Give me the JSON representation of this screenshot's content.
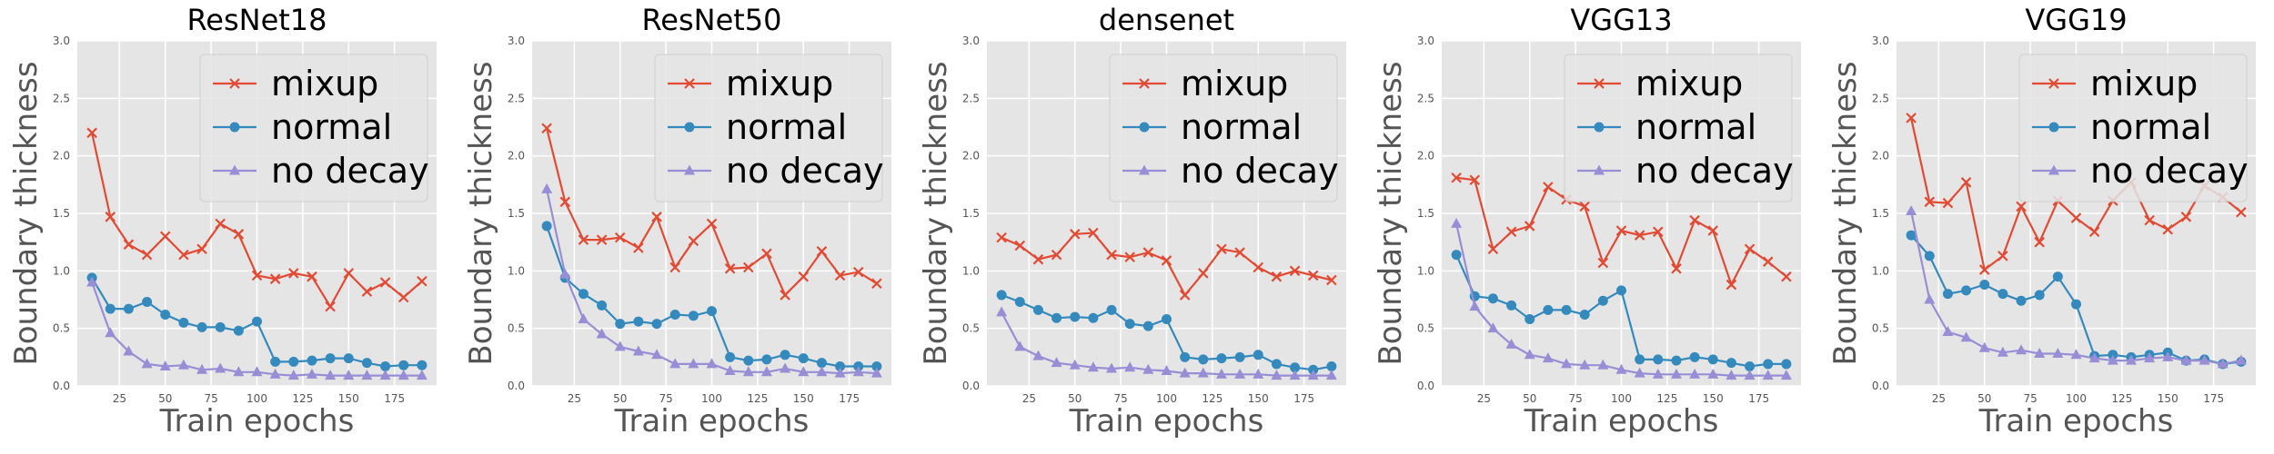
{
  "colors": {
    "mixup": "#e24a33",
    "normal": "#348abd",
    "no_decay": "#988ed5"
  },
  "chart_data": [
    {
      "type": "line",
      "title": "ResNet18",
      "xlabel": "Train epochs",
      "ylabel": "Boundary thickness",
      "xlim": [
        2,
        198
      ],
      "ylim": [
        0,
        3.0
      ],
      "xticks": [
        "25",
        "50",
        "75",
        "100",
        "125",
        "150",
        "175"
      ],
      "yticks": [
        "0.0",
        "0.5",
        "1.0",
        "1.5",
        "2.0",
        "2.5",
        "3.0"
      ],
      "legend": "upper-right",
      "x": [
        10,
        20,
        30,
        40,
        50,
        60,
        70,
        80,
        90,
        100,
        110,
        120,
        130,
        140,
        150,
        160,
        170,
        180,
        190
      ],
      "series": [
        {
          "name": "mixup",
          "marker": "x",
          "values": [
            2.2,
            1.47,
            1.23,
            1.14,
            1.3,
            1.14,
            1.19,
            1.41,
            1.32,
            0.96,
            0.93,
            0.98,
            0.95,
            0.69,
            0.98,
            0.82,
            0.9,
            0.77,
            0.91
          ]
        },
        {
          "name": "normal",
          "marker": "circle",
          "values": [
            0.94,
            0.67,
            0.67,
            0.73,
            0.62,
            0.55,
            0.51,
            0.51,
            0.48,
            0.56,
            0.21,
            0.21,
            0.22,
            0.24,
            0.24,
            0.2,
            0.17,
            0.18,
            0.18
          ]
        },
        {
          "name": "no decay",
          "marker": "triangle",
          "values": [
            0.9,
            0.46,
            0.3,
            0.19,
            0.17,
            0.18,
            0.14,
            0.15,
            0.12,
            0.12,
            0.1,
            0.09,
            0.1,
            0.09,
            0.09,
            0.09,
            0.09,
            0.09,
            0.09
          ]
        }
      ]
    },
    {
      "type": "line",
      "title": "ResNet50",
      "xlabel": "Train epochs",
      "ylabel": "Boundary thickness",
      "xlim": [
        2,
        198
      ],
      "ylim": [
        0,
        3.0
      ],
      "xticks": [
        "25",
        "50",
        "75",
        "100",
        "125",
        "150",
        "175"
      ],
      "yticks": [
        "0.0",
        "0.5",
        "1.0",
        "1.5",
        "2.0",
        "2.5",
        "3.0"
      ],
      "legend": "upper-right",
      "x": [
        10,
        20,
        30,
        40,
        50,
        60,
        70,
        80,
        90,
        100,
        110,
        120,
        130,
        140,
        150,
        160,
        170,
        180,
        190
      ],
      "series": [
        {
          "name": "mixup",
          "marker": "x",
          "values": [
            2.24,
            1.6,
            1.27,
            1.27,
            1.29,
            1.2,
            1.47,
            1.03,
            1.26,
            1.41,
            1.02,
            1.03,
            1.15,
            0.79,
            0.95,
            1.17,
            0.96,
            0.99,
            0.89
          ]
        },
        {
          "name": "normal",
          "marker": "circle",
          "values": [
            1.39,
            0.94,
            0.8,
            0.7,
            0.54,
            0.56,
            0.54,
            0.62,
            0.61,
            0.65,
            0.25,
            0.22,
            0.23,
            0.27,
            0.24,
            0.2,
            0.17,
            0.17,
            0.17
          ]
        },
        {
          "name": "no decay",
          "marker": "triangle",
          "values": [
            1.71,
            0.97,
            0.58,
            0.45,
            0.34,
            0.3,
            0.27,
            0.19,
            0.19,
            0.19,
            0.13,
            0.12,
            0.12,
            0.15,
            0.12,
            0.12,
            0.11,
            0.12,
            0.11
          ]
        }
      ]
    },
    {
      "type": "line",
      "title": "densenet",
      "xlabel": "Train epochs",
      "ylabel": "Boundary thickness",
      "xlim": [
        2,
        198
      ],
      "ylim": [
        0,
        3.0
      ],
      "xticks": [
        "25",
        "50",
        "75",
        "100",
        "125",
        "150",
        "175"
      ],
      "yticks": [
        "0.0",
        "0.5",
        "1.0",
        "1.5",
        "2.0",
        "2.5",
        "3.0"
      ],
      "legend": "upper-right",
      "x": [
        10,
        20,
        30,
        40,
        50,
        60,
        70,
        80,
        90,
        100,
        110,
        120,
        130,
        140,
        150,
        160,
        170,
        180,
        190
      ],
      "series": [
        {
          "name": "mixup",
          "marker": "x",
          "values": [
            1.29,
            1.22,
            1.1,
            1.14,
            1.32,
            1.33,
            1.14,
            1.12,
            1.16,
            1.09,
            0.79,
            0.98,
            1.19,
            1.16,
            1.03,
            0.95,
            1.0,
            0.96,
            0.92
          ]
        },
        {
          "name": "normal",
          "marker": "circle",
          "values": [
            0.79,
            0.73,
            0.66,
            0.59,
            0.6,
            0.59,
            0.66,
            0.54,
            0.52,
            0.58,
            0.25,
            0.23,
            0.24,
            0.25,
            0.27,
            0.19,
            0.16,
            0.14,
            0.17
          ]
        },
        {
          "name": "no decay",
          "marker": "triangle",
          "values": [
            0.64,
            0.34,
            0.26,
            0.2,
            0.18,
            0.16,
            0.15,
            0.16,
            0.14,
            0.13,
            0.11,
            0.11,
            0.1,
            0.1,
            0.1,
            0.09,
            0.09,
            0.09,
            0.09
          ]
        }
      ]
    },
    {
      "type": "line",
      "title": "VGG13",
      "xlabel": "Train epochs",
      "ylabel": "Boundary thickness",
      "xlim": [
        2,
        198
      ],
      "ylim": [
        0,
        3.0
      ],
      "xticks": [
        "25",
        "50",
        "75",
        "100",
        "125",
        "150",
        "175"
      ],
      "yticks": [
        "0.0",
        "0.5",
        "1.0",
        "1.5",
        "2.0",
        "2.5",
        "3.0"
      ],
      "legend": "upper-right",
      "x": [
        10,
        20,
        30,
        40,
        50,
        60,
        70,
        80,
        90,
        100,
        110,
        120,
        130,
        140,
        150,
        160,
        170,
        180,
        190
      ],
      "series": [
        {
          "name": "mixup",
          "marker": "x",
          "values": [
            1.81,
            1.79,
            1.19,
            1.34,
            1.39,
            1.73,
            1.62,
            1.56,
            1.07,
            1.35,
            1.31,
            1.34,
            1.02,
            1.44,
            1.35,
            0.88,
            1.19,
            1.08,
            0.95
          ]
        },
        {
          "name": "normal",
          "marker": "circle",
          "values": [
            1.14,
            0.78,
            0.76,
            0.7,
            0.58,
            0.66,
            0.66,
            0.62,
            0.74,
            0.83,
            0.23,
            0.23,
            0.22,
            0.25,
            0.23,
            0.2,
            0.17,
            0.19,
            0.19
          ]
        },
        {
          "name": "no decay",
          "marker": "triangle",
          "values": [
            1.41,
            0.69,
            0.5,
            0.36,
            0.27,
            0.24,
            0.19,
            0.18,
            0.18,
            0.14,
            0.11,
            0.1,
            0.1,
            0.1,
            0.1,
            0.09,
            0.09,
            0.09,
            0.09
          ]
        }
      ]
    },
    {
      "type": "line",
      "title": "VGG19",
      "xlabel": "Train epochs",
      "ylabel": "Boundary thickness",
      "xlim": [
        2,
        198
      ],
      "ylim": [
        0,
        3.0
      ],
      "xticks": [
        "25",
        "50",
        "75",
        "100",
        "125",
        "150",
        "175"
      ],
      "yticks": [
        "0.0",
        "0.5",
        "1.0",
        "1.5",
        "2.0",
        "2.5",
        "3.0"
      ],
      "legend": "upper-right",
      "x": [
        10,
        20,
        30,
        40,
        50,
        60,
        70,
        80,
        90,
        100,
        110,
        120,
        130,
        140,
        150,
        160,
        170,
        180,
        190
      ],
      "series": [
        {
          "name": "mixup",
          "marker": "x",
          "values": [
            2.33,
            1.6,
            1.59,
            1.77,
            1.01,
            1.13,
            1.56,
            1.25,
            1.61,
            1.46,
            1.34,
            1.61,
            1.77,
            1.44,
            1.36,
            1.47,
            1.74,
            1.64,
            1.51
          ]
        },
        {
          "name": "normal",
          "marker": "circle",
          "values": [
            1.31,
            1.13,
            0.8,
            0.83,
            0.88,
            0.8,
            0.74,
            0.79,
            0.95,
            0.71,
            0.26,
            0.27,
            0.25,
            0.27,
            0.29,
            0.22,
            0.23,
            0.19,
            0.21
          ]
        },
        {
          "name": "no decay",
          "marker": "triangle",
          "values": [
            1.52,
            0.75,
            0.47,
            0.42,
            0.33,
            0.29,
            0.31,
            0.28,
            0.28,
            0.27,
            0.24,
            0.22,
            0.22,
            0.24,
            0.25,
            0.22,
            0.22,
            0.19,
            0.22
          ]
        }
      ]
    }
  ]
}
